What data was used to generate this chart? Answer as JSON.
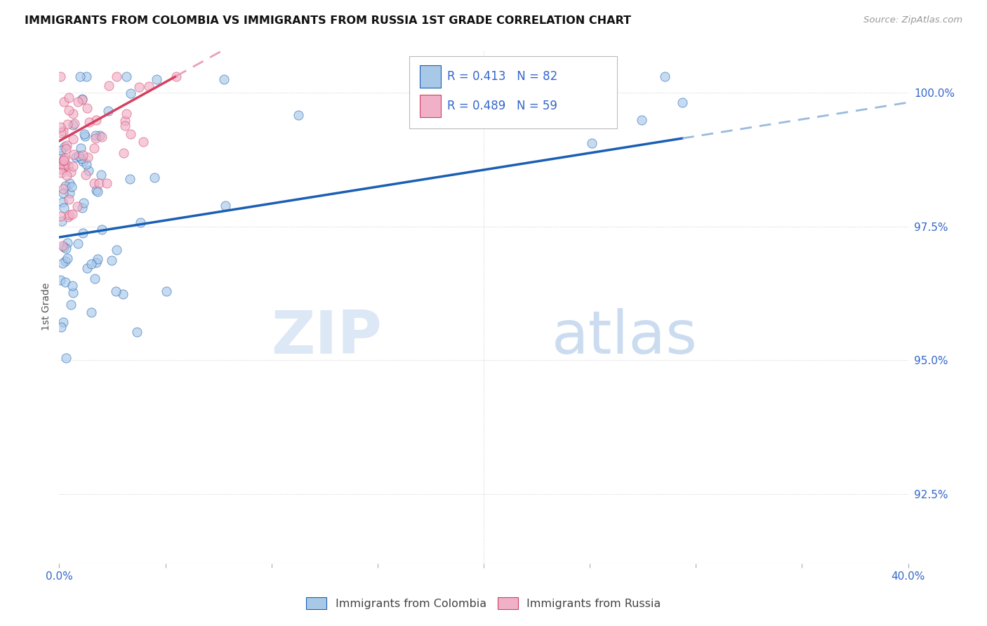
{
  "title": "IMMIGRANTS FROM COLOMBIA VS IMMIGRANTS FROM RUSSIA 1ST GRADE CORRELATION CHART",
  "source": "Source: ZipAtlas.com",
  "ylabel": "1st Grade",
  "y_ticks": [
    92.5,
    95.0,
    97.5,
    100.0
  ],
  "y_tick_labels": [
    "92.5%",
    "95.0%",
    "97.5%",
    "100.0%"
  ],
  "x_min": 0.0,
  "x_max": 40.0,
  "y_min": 91.2,
  "y_max": 100.8,
  "colombia_color": "#a8c8e8",
  "russia_color": "#f0b0c8",
  "colombia_R": 0.413,
  "colombia_N": 82,
  "russia_R": 0.489,
  "russia_N": 59,
  "trend_colombia_color": "#1a5fb4",
  "trend_russia_color": "#d44060",
  "trend_colombia_dashed_color": "#99bbdd",
  "trend_russia_dashed_color": "#e8a0b8",
  "legend_labels": [
    "Immigrants from Colombia",
    "Immigrants from Russia"
  ],
  "watermark_zip": "ZIP",
  "watermark_atlas": "atlas",
  "colombia_seed": 101,
  "russia_seed": 202
}
